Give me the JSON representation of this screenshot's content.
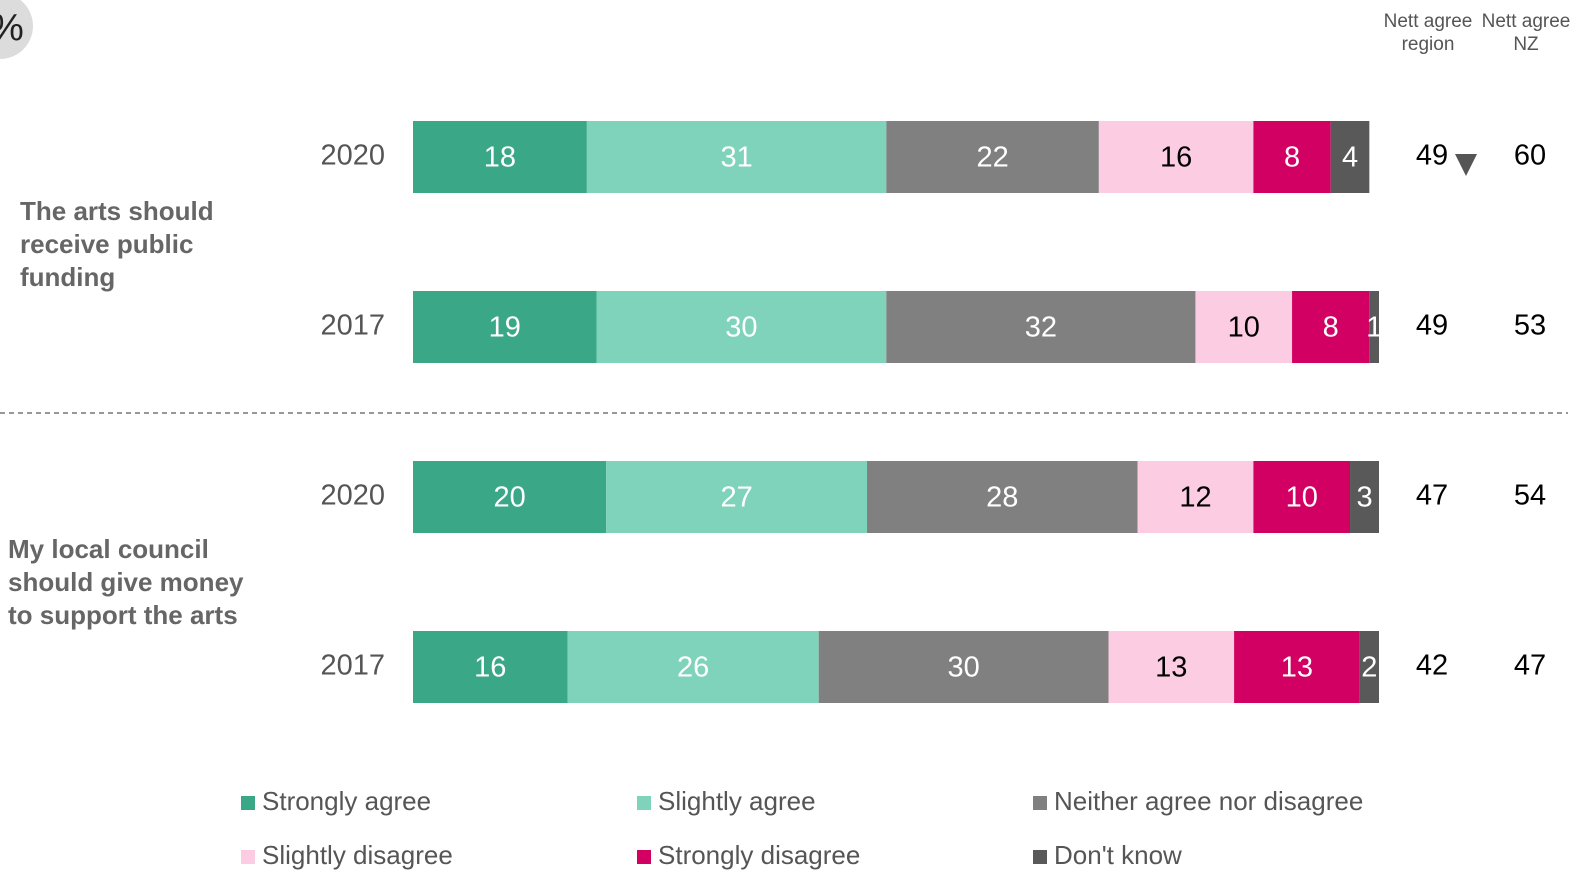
{
  "chart_data": {
    "type": "stacked_barh",
    "unit_label": "%",
    "categories": [
      "2020",
      "2017",
      "2020",
      "2017"
    ],
    "groups": [
      "The arts should receive public funding",
      "My local council should give money to support the arts"
    ],
    "xlim": [
      0,
      100
    ],
    "series": [
      {
        "name": "Strongly agree",
        "color": "#3aa887",
        "label_color": "#ffffff",
        "values": [
          18,
          19,
          20,
          16
        ]
      },
      {
        "name": "Slightly agree",
        "color": "#7fd3ba",
        "label_color": "#ffffff",
        "values": [
          31,
          30,
          27,
          26
        ]
      },
      {
        "name": "Neither agree nor disagree",
        "color": "#808080",
        "label_color": "#ffffff",
        "values": [
          22,
          32,
          28,
          30
        ]
      },
      {
        "name": "Slightly disagree",
        "color": "#fccde2",
        "label_color": "#000000",
        "values": [
          16,
          10,
          12,
          13
        ]
      },
      {
        "name": "Strongly disagree",
        "color": "#d10062",
        "label_color": "#ffffff",
        "values": [
          8,
          8,
          10,
          13
        ]
      },
      {
        "name": "Don't know",
        "color": "#595959",
        "label_color": "#ffffff",
        "values": [
          4,
          1,
          3,
          2
        ]
      }
    ],
    "nett_region_label": "Nett agree region",
    "nett_nz_label": "Nett agree NZ",
    "nett_region": [
      49,
      49,
      47,
      42
    ],
    "nett_nz": [
      60,
      53,
      54,
      47
    ]
  }
}
